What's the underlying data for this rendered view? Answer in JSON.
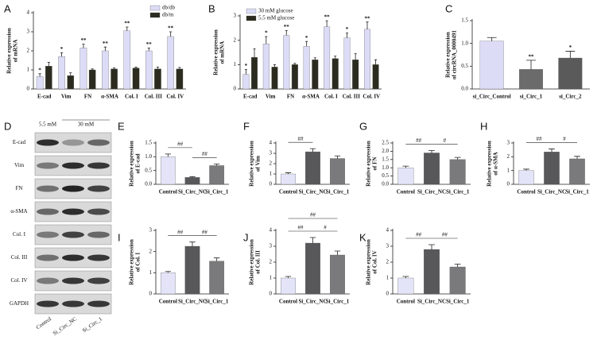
{
  "chart_data": [
    {
      "type": "bar",
      "panel": "A",
      "ylabel": [
        "Relative expression",
        "of mRNA"
      ],
      "categories": [
        "E-cad",
        "Vim",
        "FN",
        "α-SMA",
        "Col. I",
        "Col. III",
        "Col. IV"
      ],
      "series": [
        {
          "name": "db/db",
          "color": "#dcdcf7",
          "values": [
            0.65,
            1.7,
            2.15,
            2.0,
            3.05,
            2.0,
            2.75
          ],
          "errors": [
            0.15,
            0.2,
            0.2,
            0.2,
            0.2,
            0.15,
            0.25
          ],
          "significance": [
            "*",
            "*",
            "**",
            "**",
            "**",
            "**",
            "**"
          ]
        },
        {
          "name": "db/m",
          "color": "#2b2b1f",
          "values": [
            1.2,
            0.7,
            1.0,
            1.05,
            1.1,
            1.05,
            1.05
          ],
          "errors": [
            0.2,
            0.15,
            0.05,
            0.05,
            0.05,
            0.1,
            0.08
          ]
        }
      ],
      "ylim": [
        0,
        4
      ],
      "yticks": [
        0,
        1,
        2,
        3,
        4
      ],
      "legend": "upper right"
    },
    {
      "type": "bar",
      "panel": "B",
      "ylabel": [
        "Relative expression",
        "of mRNA"
      ],
      "categories": [
        "E-cad",
        "Vim",
        "FN",
        "α-SMA",
        "Col. I",
        "Col. III",
        "Col. IV"
      ],
      "series": [
        {
          "name": "30 mM glucose",
          "color": "#dcdcf7",
          "values": [
            0.6,
            1.85,
            2.2,
            1.75,
            2.55,
            2.1,
            2.45
          ],
          "errors": [
            0.2,
            0.3,
            0.2,
            0.2,
            0.25,
            0.2,
            0.3
          ],
          "significance": [
            "*",
            "*",
            "**",
            "*",
            "**",
            "*",
            "**"
          ]
        },
        {
          "name": "5.5 mM glucose",
          "color": "#2b2b1f",
          "values": [
            1.3,
            0.9,
            1.0,
            1.2,
            1.25,
            1.2,
            1.0
          ],
          "errors": [
            0.35,
            0.1,
            0.05,
            0.08,
            0.1,
            0.25,
            0.2
          ]
        }
      ],
      "ylim": [
        0,
        3
      ],
      "yticks": [
        0,
        1,
        2,
        3
      ],
      "legend": "upper left"
    },
    {
      "type": "bar",
      "panel": "C",
      "ylabel": [
        "Relative expression",
        "of circRNA_0000491"
      ],
      "categories": [
        "si_Circ_Control",
        "si_Circ_1",
        "si_Circ_2"
      ],
      "values": [
        1.05,
        0.43,
        0.68
      ],
      "errors": [
        0.08,
        0.2,
        0.15
      ],
      "colors": [
        "#dcdcf7",
        "#6b6b6b",
        "#5a5a5a"
      ],
      "significance": [
        null,
        "**",
        "*"
      ],
      "ylim": [
        0,
        1.5
      ],
      "yticks": [
        {
          "value": 0,
          "label": "0.0"
        },
        0.5,
        {
          "value": 1,
          "label": "1.0"
        },
        1.5
      ]
    },
    {
      "type": "bar",
      "panel": "E",
      "ylabel": [
        "Relative expression",
        "of E-cad"
      ],
      "categories": [
        "Control",
        "Si_Circ_NC",
        "Si_Circ_1"
      ],
      "values": [
        1.0,
        0.25,
        0.68
      ],
      "errors": [
        0.1,
        0.03,
        0.06
      ],
      "colors": [
        "#e4e4f9",
        "#58585a",
        "#7a7a7c"
      ],
      "comparisons": [
        {
          "label": "##",
          "pair": [
            "Control",
            "Si_Circ_NC"
          ]
        },
        {
          "label": "##",
          "pair": [
            "Si_Circ_NC",
            "Si_Circ_1"
          ]
        }
      ],
      "ylim": [
        0,
        1.5
      ],
      "yticks": [
        {
          "value": 0,
          "label": "0.0"
        },
        0.5,
        {
          "value": 1,
          "label": "1.0"
        },
        1.5
      ]
    },
    {
      "type": "bar",
      "panel": "F",
      "ylabel": [
        "Relative expression",
        "of Vim"
      ],
      "categories": [
        "Control",
        "Si_Circ_NC",
        "Si_Circ_1"
      ],
      "values": [
        1.0,
        3.15,
        2.5
      ],
      "errors": [
        0.12,
        0.3,
        0.25
      ],
      "colors": [
        "#e4e4f9",
        "#58585a",
        "#7a7a7c"
      ],
      "comparisons": [
        {
          "label": "##",
          "pair": [
            "Control",
            "Si_Circ_NC"
          ]
        }
      ],
      "ylim": [
        0,
        4
      ],
      "yticks": [
        0,
        1,
        2,
        3,
        4
      ]
    },
    {
      "type": "bar",
      "panel": "G",
      "ylabel": [
        "Relative expression",
        "of FN"
      ],
      "categories": [
        "Control",
        "Si_Circ_NC",
        "Si_Circ_1"
      ],
      "values": [
        1.0,
        1.9,
        1.5
      ],
      "errors": [
        0.1,
        0.15,
        0.13
      ],
      "colors": [
        "#e4e4f9",
        "#58585a",
        "#7a7a7c"
      ],
      "comparisons": [
        {
          "label": "##",
          "pair": [
            "Control",
            "Si_Circ_NC"
          ]
        },
        {
          "label": "#",
          "pair": [
            "Si_Circ_NC",
            "Si_Circ_1"
          ]
        }
      ],
      "ylim": [
        0,
        2.5
      ],
      "yticks": [
        {
          "value": 0,
          "label": "0.0"
        },
        0.5,
        {
          "value": 1,
          "label": "1.0"
        },
        1.5,
        {
          "value": 2,
          "label": "2.0"
        },
        2.5
      ]
    },
    {
      "type": "bar",
      "panel": "H",
      "ylabel": [
        "Relative expression",
        "of α-SMA"
      ],
      "categories": [
        "Control",
        "Si_Circ_NC",
        "Si_Circ_1"
      ],
      "values": [
        1.0,
        2.35,
        1.85
      ],
      "errors": [
        0.1,
        0.22,
        0.18
      ],
      "colors": [
        "#e4e4f9",
        "#58585a",
        "#7a7a7c"
      ],
      "comparisons": [
        {
          "label": "##",
          "pair": [
            "Control",
            "Si_Circ_NC"
          ]
        },
        {
          "label": "#",
          "pair": [
            "Si_Circ_NC",
            "Si_Circ_1"
          ]
        }
      ],
      "ylim": [
        0,
        3
      ],
      "yticks": [
        0,
        1,
        2,
        3
      ]
    },
    {
      "type": "bar",
      "panel": "I",
      "ylabel": [
        "Relative expression",
        "of Col. I"
      ],
      "categories": [
        "Control",
        "Si_Circ_NC",
        "Si_Circ_1"
      ],
      "values": [
        1.0,
        2.25,
        1.55
      ],
      "errors": [
        0.06,
        0.2,
        0.15
      ],
      "colors": [
        "#e4e4f9",
        "#58585a",
        "#7a7a7c"
      ],
      "comparisons": [
        {
          "label": "##",
          "pair": [
            "Control",
            "Si_Circ_NC"
          ]
        },
        {
          "label": "##",
          "pair": [
            "Si_Circ_NC",
            "Si_Circ_1"
          ]
        }
      ],
      "ylim": [
        0,
        3
      ],
      "yticks": [
        0,
        1,
        2,
        3
      ]
    },
    {
      "type": "bar",
      "panel": "J",
      "ylabel": [
        "Relative expression",
        "of Col. III"
      ],
      "categories": [
        "Control",
        "Si_Circ_NC",
        "Si_Circ_1"
      ],
      "values": [
        1.0,
        3.2,
        2.45
      ],
      "errors": [
        0.1,
        0.35,
        0.25
      ],
      "colors": [
        "#e4e4f9",
        "#58585a",
        "#7a7a7c"
      ],
      "comparisons": [
        {
          "label": "##",
          "pair": [
            "Control",
            "Si_Circ_NC"
          ]
        },
        {
          "label": "#",
          "pair": [
            "Si_Circ_NC",
            "Si_Circ_1"
          ]
        },
        {
          "label": "##",
          "pair": [
            "Control",
            "Si_Circ_1"
          ]
        }
      ],
      "ylim": [
        0,
        4
      ],
      "yticks": [
        0,
        1,
        2,
        3,
        4
      ]
    },
    {
      "type": "bar",
      "panel": "K",
      "ylabel": [
        "Relative expression",
        "of Col. IV"
      ],
      "categories": [
        "Control",
        "Si_Circ_NC",
        "Si_Circ_1"
      ],
      "values": [
        1.0,
        2.8,
        1.7
      ],
      "errors": [
        0.1,
        0.3,
        0.18
      ],
      "colors": [
        "#e4e4f9",
        "#58585a",
        "#7a7a7c"
      ],
      "comparisons": [
        {
          "label": "##",
          "pair": [
            "Control",
            "Si_Circ_NC"
          ]
        },
        {
          "label": "##",
          "pair": [
            "Si_Circ_NC",
            "Si_Circ_1"
          ]
        }
      ],
      "ylim": [
        0,
        4
      ],
      "yticks": [
        0,
        1,
        2,
        3,
        4
      ]
    }
  ],
  "blot": {
    "panel": "D",
    "conditions": [
      "5.5 mM",
      "30 mM"
    ],
    "proteins": [
      "E-cad",
      "Vim",
      "FN",
      "α-SMA",
      "Col. I",
      "Col. III",
      "Col. IV",
      "GAPDH"
    ],
    "lanes": [
      "Control",
      "Si_Circ_NC",
      "Si_Circ_1"
    ]
  }
}
